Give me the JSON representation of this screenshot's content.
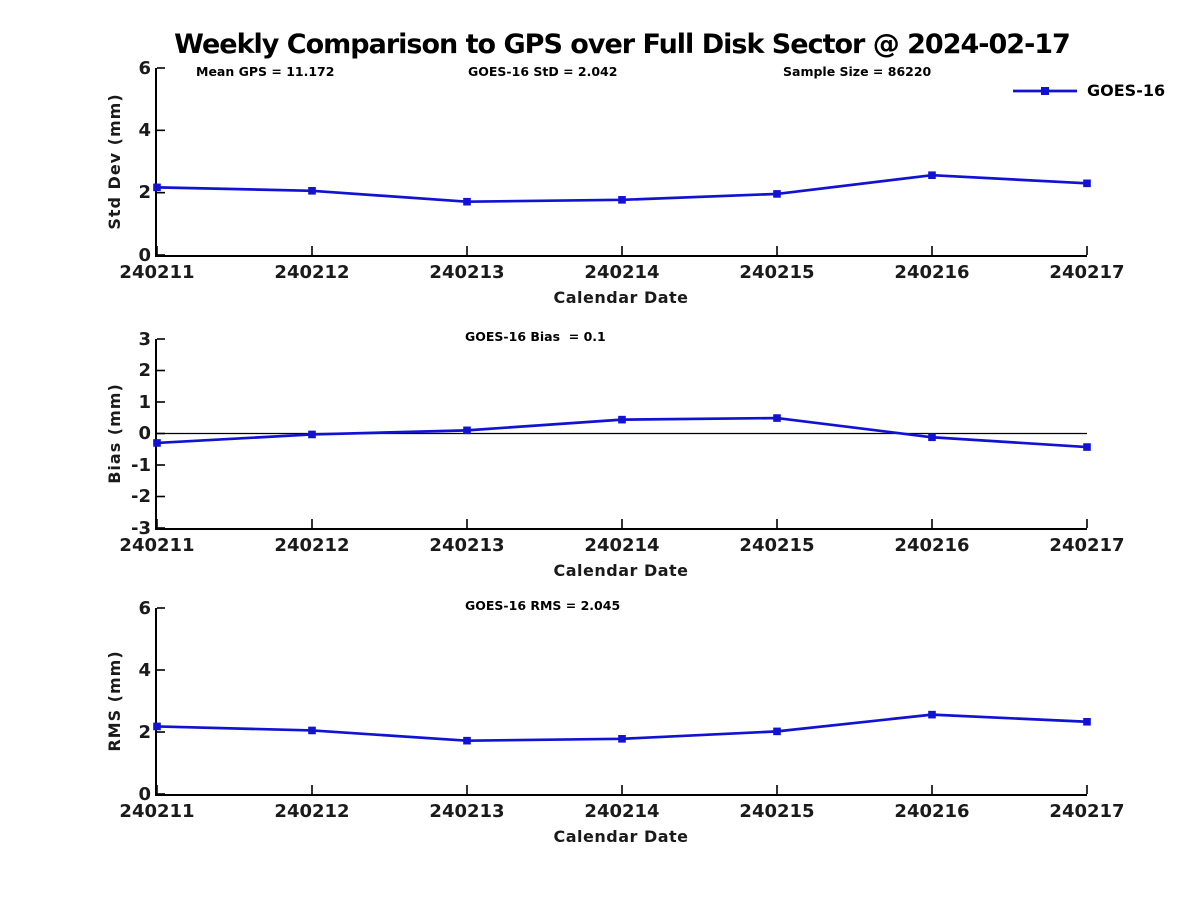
{
  "page": {
    "title": "Weekly Comparison to GPS over Full Disk Sector @ 2024-02-17",
    "background": "#ffffff"
  },
  "legend": {
    "label": "GOES-16",
    "position": "top-right"
  },
  "colors": {
    "series": "#1212d2",
    "axis": "#000000",
    "text": "#1a1a1a"
  },
  "annotations": {
    "mean_gps": "Mean GPS = 11.172",
    "std": "GOES-16 StD = 2.042",
    "sample_size": "Sample Size = 86220",
    "bias": "GOES-16 Bias  = 0.1",
    "rms": "GOES-16 RMS = 2.045"
  },
  "chart_data": [
    {
      "type": "line",
      "title": "",
      "xlabel": "Calendar Date",
      "ylabel": "Std Dev (mm)",
      "categories": [
        "240211",
        "240212",
        "240213",
        "240214",
        "240215",
        "240216",
        "240217"
      ],
      "series": [
        {
          "name": "GOES-16",
          "values": [
            2.17,
            2.06,
            1.71,
            1.77,
            1.96,
            2.56,
            2.3
          ]
        }
      ],
      "ylim": [
        0,
        6
      ],
      "yticks": [
        0,
        2,
        4,
        6
      ],
      "grid": false,
      "zero_line": false,
      "marker": "square",
      "legend_position": "top-right"
    },
    {
      "type": "line",
      "title": "",
      "xlabel": "Calendar Date",
      "ylabel": "Bias (mm)",
      "categories": [
        "240211",
        "240212",
        "240213",
        "240214",
        "240215",
        "240216",
        "240217"
      ],
      "series": [
        {
          "name": "GOES-16",
          "values": [
            -0.3,
            -0.03,
            0.1,
            0.44,
            0.49,
            -0.12,
            -0.43
          ]
        }
      ],
      "ylim": [
        -3,
        3
      ],
      "yticks": [
        -3,
        -2,
        -1,
        0,
        1,
        2,
        3
      ],
      "grid": false,
      "zero_line": true,
      "marker": "square",
      "legend_position": "none"
    },
    {
      "type": "line",
      "title": "",
      "xlabel": "Calendar Date",
      "ylabel": "RMS (mm)",
      "categories": [
        "240211",
        "240212",
        "240213",
        "240214",
        "240215",
        "240216",
        "240217"
      ],
      "series": [
        {
          "name": "GOES-16",
          "values": [
            2.18,
            2.05,
            1.72,
            1.78,
            2.02,
            2.56,
            2.33
          ]
        }
      ],
      "ylim": [
        0,
        6
      ],
      "yticks": [
        0,
        2,
        4,
        6
      ],
      "grid": false,
      "zero_line": false,
      "marker": "square",
      "legend_position": "none"
    }
  ]
}
